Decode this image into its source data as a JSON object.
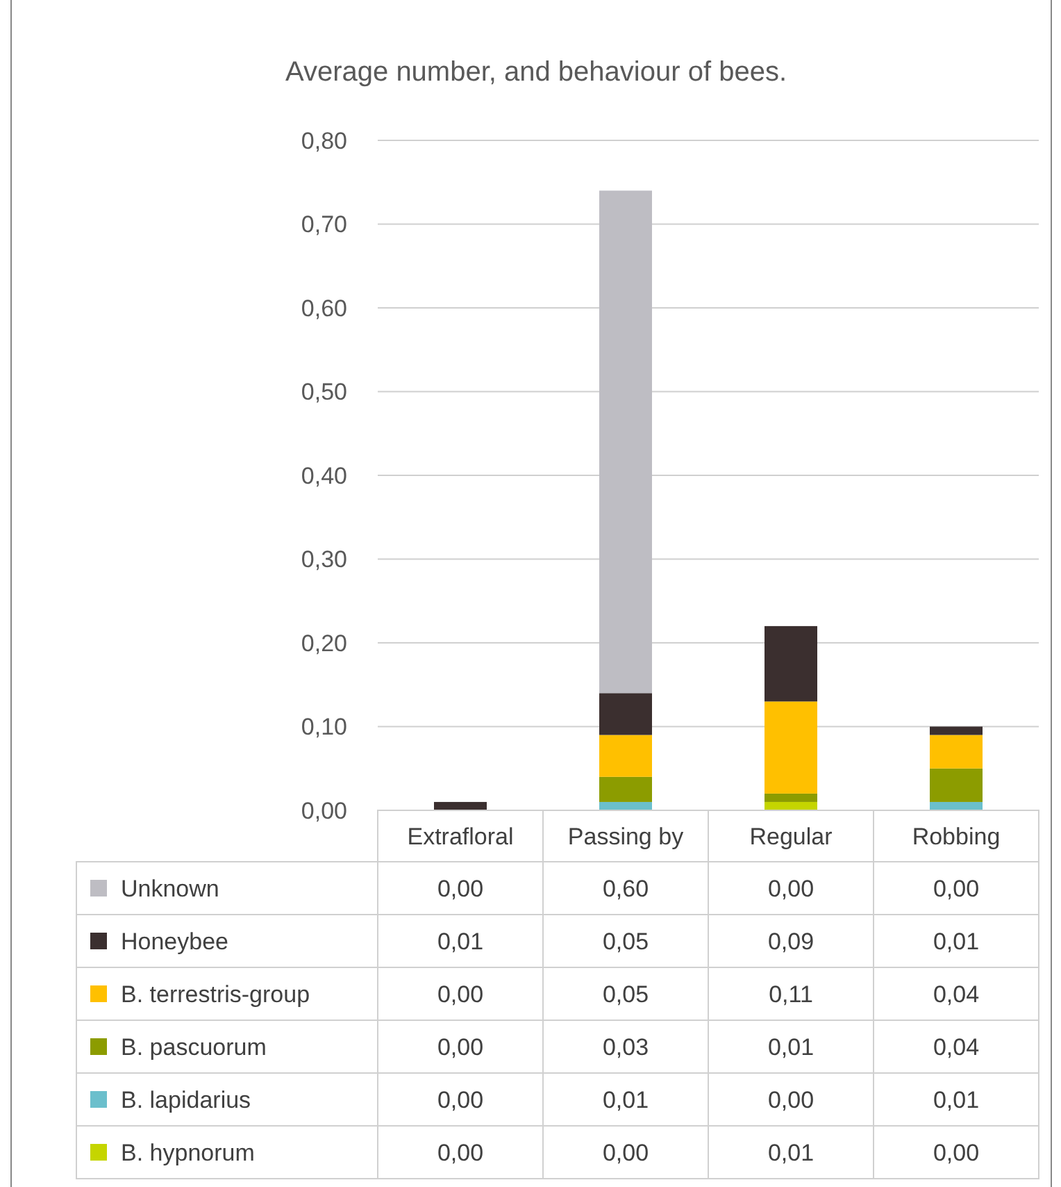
{
  "chart_data": {
    "type": "bar",
    "title": "Average number, and behaviour of bees.",
    "stacked": true,
    "categories": [
      "Extrafloral",
      "Passing by",
      "Regular",
      "Robbing"
    ],
    "series": [
      {
        "name": "B. hypnorum",
        "color": "#c5d500",
        "values": [
          0,
          0,
          0.01,
          0
        ],
        "value_labels": [
          "0,00",
          "0,00",
          "0,01",
          "0,00"
        ]
      },
      {
        "name": "B. lapidarius",
        "color": "#6bbfcc",
        "values": [
          0,
          0.01,
          0,
          0.01
        ],
        "value_labels": [
          "0,00",
          "0,01",
          "0,00",
          "0,01"
        ]
      },
      {
        "name": "B. pascuorum",
        "color": "#8c9c00",
        "values": [
          0,
          0.03,
          0.01,
          0.04
        ],
        "value_labels": [
          "0,00",
          "0,03",
          "0,01",
          "0,04"
        ]
      },
      {
        "name": "B. terrestris-group",
        "color": "#ffc000",
        "values": [
          0,
          0.05,
          0.11,
          0.04
        ],
        "value_labels": [
          "0,00",
          "0,05",
          "0,11",
          "0,04"
        ]
      },
      {
        "name": "Honeybee",
        "color": "#3b2f2f",
        "values": [
          0.01,
          0.05,
          0.09,
          0.01
        ],
        "value_labels": [
          "0,01",
          "0,05",
          "0,09",
          "0,01"
        ]
      },
      {
        "name": "Unknown",
        "color": "#bebdc3",
        "values": [
          0,
          0.6,
          0,
          0
        ],
        "value_labels": [
          "0,00",
          "0,60",
          "0,00",
          "0,00"
        ]
      }
    ],
    "ylim": [
      0,
      0.8
    ],
    "yticks": [
      {
        "value": 0,
        "label": "0,00"
      },
      {
        "value": 0.1,
        "label": "0,10"
      },
      {
        "value": 0.2,
        "label": "0,20"
      },
      {
        "value": 0.3,
        "label": "0,30"
      },
      {
        "value": 0.4,
        "label": "0,40"
      },
      {
        "value": 0.5,
        "label": "0,50"
      },
      {
        "value": 0.6,
        "label": "0,60"
      },
      {
        "value": 0.7,
        "label": "0,70"
      },
      {
        "value": 0.8,
        "label": "0,80"
      }
    ],
    "grid": "y",
    "legend": "bottom"
  }
}
